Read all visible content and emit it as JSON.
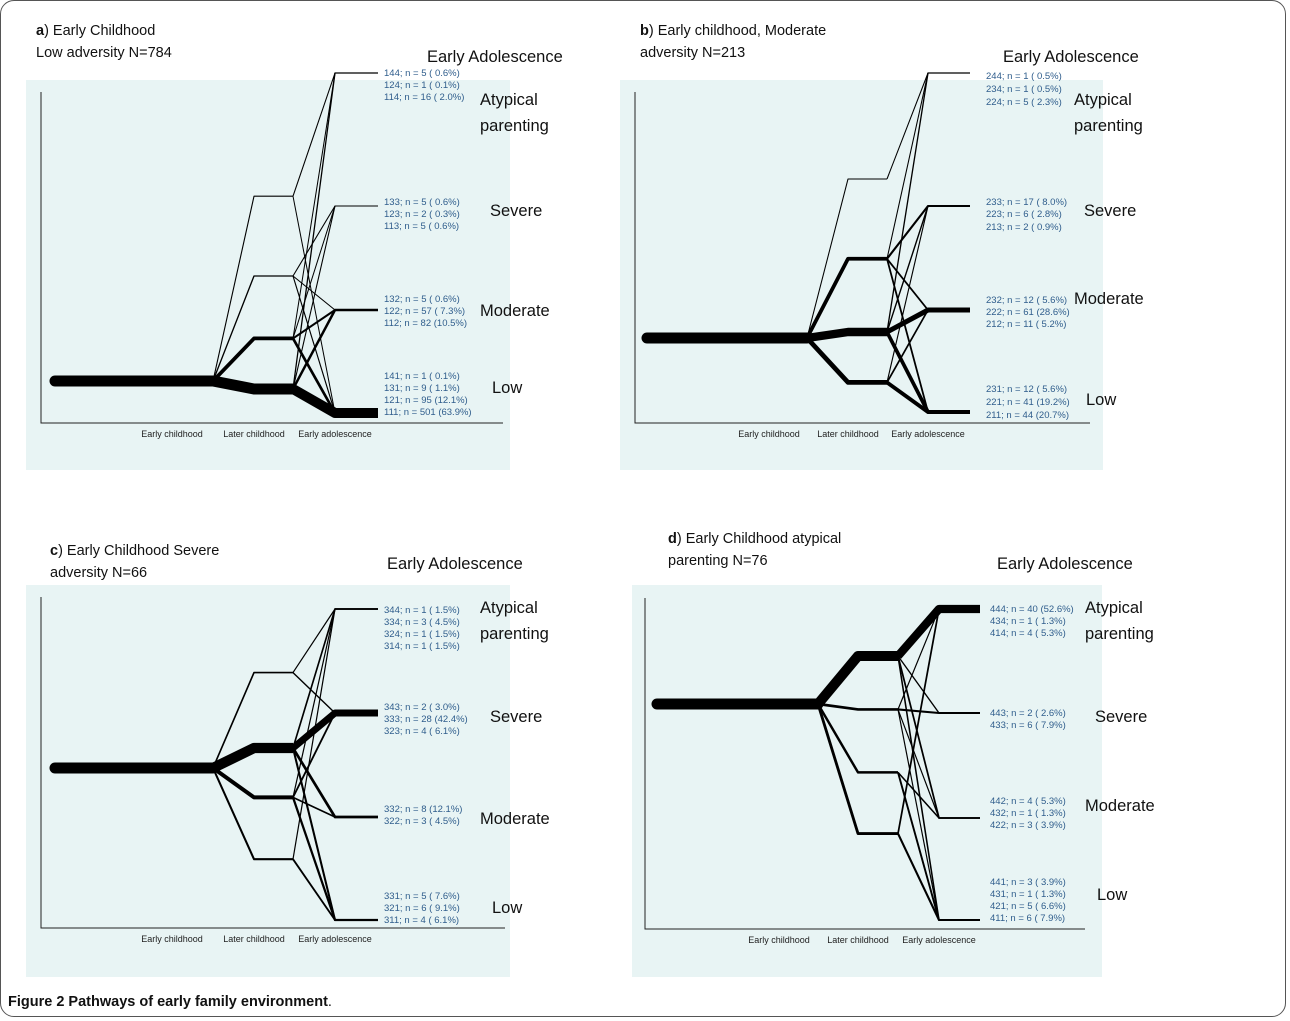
{
  "caption": {
    "label": "Figure 2 Pathways of early family environment",
    "end": "."
  },
  "axis_ticks": [
    "Early childhood",
    "Later childhood",
    "Early adolescence"
  ],
  "level_labels": [
    "Low",
    "Moderate",
    "Severe",
    "Atypical parenting"
  ],
  "column_title": "Early Adolescence",
  "colors": {
    "panel_bg": "#e8f4f4",
    "stat_text": "#2f5d8c"
  },
  "panels": [
    {
      "letter": "a",
      "title": ") Early Childhood\nLow adversity N=784",
      "start": 1,
      "outcomes": [
        {
          "code": "144",
          "n": 5,
          "pct": "0.6%"
        },
        {
          "code": "124",
          "n": 1,
          "pct": "0.1%"
        },
        {
          "code": "114",
          "n": 16,
          "pct": "2.0%"
        },
        {
          "code": "133",
          "n": 5,
          "pct": "0.6%"
        },
        {
          "code": "123",
          "n": 2,
          "pct": "0.3%"
        },
        {
          "code": "113",
          "n": 5,
          "pct": "0.6%"
        },
        {
          "code": "132",
          "n": 5,
          "pct": "0.6%"
        },
        {
          "code": "122",
          "n": 57,
          "pct": "7.3%"
        },
        {
          "code": "112",
          "n": 82,
          "pct": "10.5%"
        },
        {
          "code": "141",
          "n": 1,
          "pct": "0.1%"
        },
        {
          "code": "131",
          "n": 9,
          "pct": "1.1%"
        },
        {
          "code": "121",
          "n": 95,
          "pct": "12.1%"
        },
        {
          "code": "111",
          "n": 501,
          "pct": "63.9%"
        }
      ]
    },
    {
      "letter": "b",
      "title": ") Early childhood, Moderate\nadversity N=213",
      "start": 2,
      "outcomes": [
        {
          "code": "244",
          "n": 1,
          "pct": "0.5%"
        },
        {
          "code": "234",
          "n": 1,
          "pct": "0.5%"
        },
        {
          "code": "224",
          "n": 5,
          "pct": "2.3%"
        },
        {
          "code": "233",
          "n": 17,
          "pct": "8.0%"
        },
        {
          "code": "223",
          "n": 6,
          "pct": "2.8%"
        },
        {
          "code": "213",
          "n": 2,
          "pct": "0.9%"
        },
        {
          "code": "232",
          "n": 12,
          "pct": "5.6%"
        },
        {
          "code": "222",
          "n": 61,
          "pct": "28.6%"
        },
        {
          "code": "212",
          "n": 11,
          "pct": "5.2%"
        },
        {
          "code": "231",
          "n": 12,
          "pct": "5.6%"
        },
        {
          "code": "221",
          "n": 41,
          "pct": "19.2%"
        },
        {
          "code": "211",
          "n": 44,
          "pct": "20.7%"
        }
      ]
    },
    {
      "letter": "c",
      "title": ") Early Childhood  Severe\n      adversity N=66",
      "start": 3,
      "outcomes": [
        {
          "code": "344",
          "n": 1,
          "pct": "1.5%"
        },
        {
          "code": "334",
          "n": 3,
          "pct": "4.5%"
        },
        {
          "code": "324",
          "n": 1,
          "pct": "1.5%"
        },
        {
          "code": "314",
          "n": 1,
          "pct": "1.5%"
        },
        {
          "code": "343",
          "n": 2,
          "pct": "3.0%"
        },
        {
          "code": "333",
          "n": 28,
          "pct": "42.4%"
        },
        {
          "code": "323",
          "n": 4,
          "pct": "6.1%"
        },
        {
          "code": "332",
          "n": 8,
          "pct": "12.1%"
        },
        {
          "code": "322",
          "n": 3,
          "pct": "4.5%"
        },
        {
          "code": "331",
          "n": 5,
          "pct": "7.6%"
        },
        {
          "code": "321",
          "n": 6,
          "pct": "9.1%"
        },
        {
          "code": "311",
          "n": 4,
          "pct": "6.1%"
        }
      ]
    },
    {
      "letter": "d",
      "title": ") Early Childhood atypical\n         parenting N=76",
      "start": 4,
      "outcomes": [
        {
          "code": "444",
          "n": 40,
          "pct": "52.6%"
        },
        {
          "code": "434",
          "n": 1,
          "pct": "1.3%"
        },
        {
          "code": "414",
          "n": 4,
          "pct": "5.3%"
        },
        {
          "code": "443",
          "n": 2,
          "pct": "2.6%"
        },
        {
          "code": "433",
          "n": 6,
          "pct": "7.9%"
        },
        {
          "code": "442",
          "n": 4,
          "pct": "5.3%"
        },
        {
          "code": "432",
          "n": 1,
          "pct": "1.3%"
        },
        {
          "code": "422",
          "n": 3,
          "pct": "3.9%"
        },
        {
          "code": "441",
          "n": 3,
          "pct": "3.9%"
        },
        {
          "code": "431",
          "n": 1,
          "pct": "1.3%"
        },
        {
          "code": "421",
          "n": 5,
          "pct": "6.6%"
        },
        {
          "code": "411",
          "n": 6,
          "pct": "7.9%"
        }
      ]
    }
  ]
}
